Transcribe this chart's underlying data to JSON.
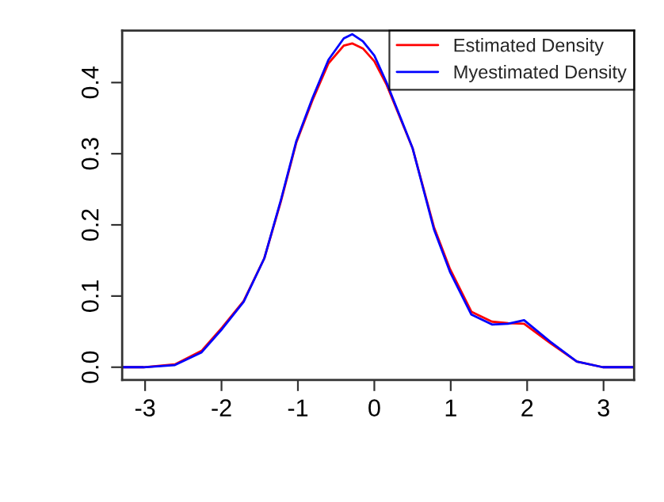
{
  "chart_data": {
    "type": "line",
    "x": [
      -3.3,
      -3.02,
      -2.61,
      -2.26,
      -1.99,
      -1.71,
      -1.44,
      -1.22,
      -1.02,
      -0.81,
      -0.6,
      -0.4,
      -0.29,
      -0.15,
      0.0,
      0.16,
      0.5,
      0.78,
      0.99,
      1.27,
      1.54,
      1.75,
      1.96,
      2.3,
      2.65,
      2.99,
      3.4
    ],
    "series": [
      {
        "name": "Estimated Density",
        "color": "#ff0000",
        "values": [
          0,
          0,
          0.004,
          0.023,
          0.056,
          0.093,
          0.153,
          0.234,
          0.316,
          0.375,
          0.427,
          0.452,
          0.455,
          0.448,
          0.43,
          0.397,
          0.308,
          0.197,
          0.138,
          0.078,
          0.064,
          0.062,
          0.061,
          0.034,
          0.008,
          0,
          0
        ]
      },
      {
        "name": "Myestimated Density",
        "color": "#0000ff",
        "values": [
          0,
          0,
          0.003,
          0.021,
          0.054,
          0.092,
          0.153,
          0.236,
          0.318,
          0.378,
          0.432,
          0.462,
          0.468,
          0.458,
          0.438,
          0.4,
          0.308,
          0.194,
          0.134,
          0.074,
          0.06,
          0.061,
          0.066,
          0.036,
          0.008,
          0,
          0
        ]
      }
    ],
    "xlim": [
      -3.3,
      3.4
    ],
    "ylim": [
      -0.018,
      0.473
    ],
    "xticks": [
      -3,
      -2,
      -1,
      0,
      1,
      2,
      3
    ],
    "yticks": [
      {
        "value": 0,
        "label": "0.0"
      },
      {
        "value": 0.1,
        "label": "0.1"
      },
      {
        "value": 0.2,
        "label": "0.2"
      },
      {
        "value": 0.3,
        "label": "0.3"
      },
      {
        "value": 0.4,
        "label": "0.4"
      }
    ],
    "grid": false,
    "legend": "top right"
  }
}
